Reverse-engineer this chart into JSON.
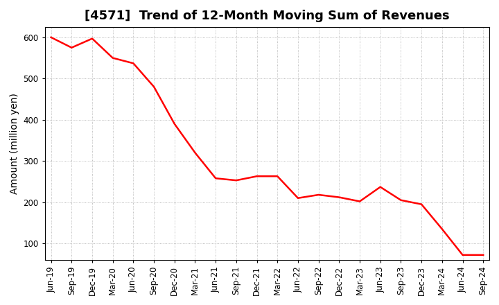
{
  "title": "[4571]  Trend of 12-Month Moving Sum of Revenues",
  "ylabel": "Amount (million yen)",
  "line_color": "#FF0000",
  "background_color": "#FFFFFF",
  "grid_color": "#AAAAAA",
  "x_labels": [
    "Jun-19",
    "Sep-19",
    "Dec-19",
    "Mar-20",
    "Jun-20",
    "Sep-20",
    "Dec-20",
    "Mar-21",
    "Jun-21",
    "Sep-21",
    "Dec-21",
    "Mar-22",
    "Jun-22",
    "Sep-22",
    "Dec-22",
    "Mar-23",
    "Jun-23",
    "Sep-23",
    "Dec-23",
    "Mar-24",
    "Jun-24",
    "Sep-24"
  ],
  "values": [
    600,
    575,
    597,
    550,
    537,
    480,
    390,
    320,
    258,
    253,
    263,
    263,
    210,
    218,
    212,
    202,
    237,
    205,
    195,
    135,
    72,
    72
  ],
  "ylim": [
    60,
    625
  ],
  "yticks": [
    100,
    200,
    300,
    400,
    500,
    600
  ],
  "title_fontsize": 13,
  "axis_label_fontsize": 10,
  "tick_fontsize": 8.5
}
